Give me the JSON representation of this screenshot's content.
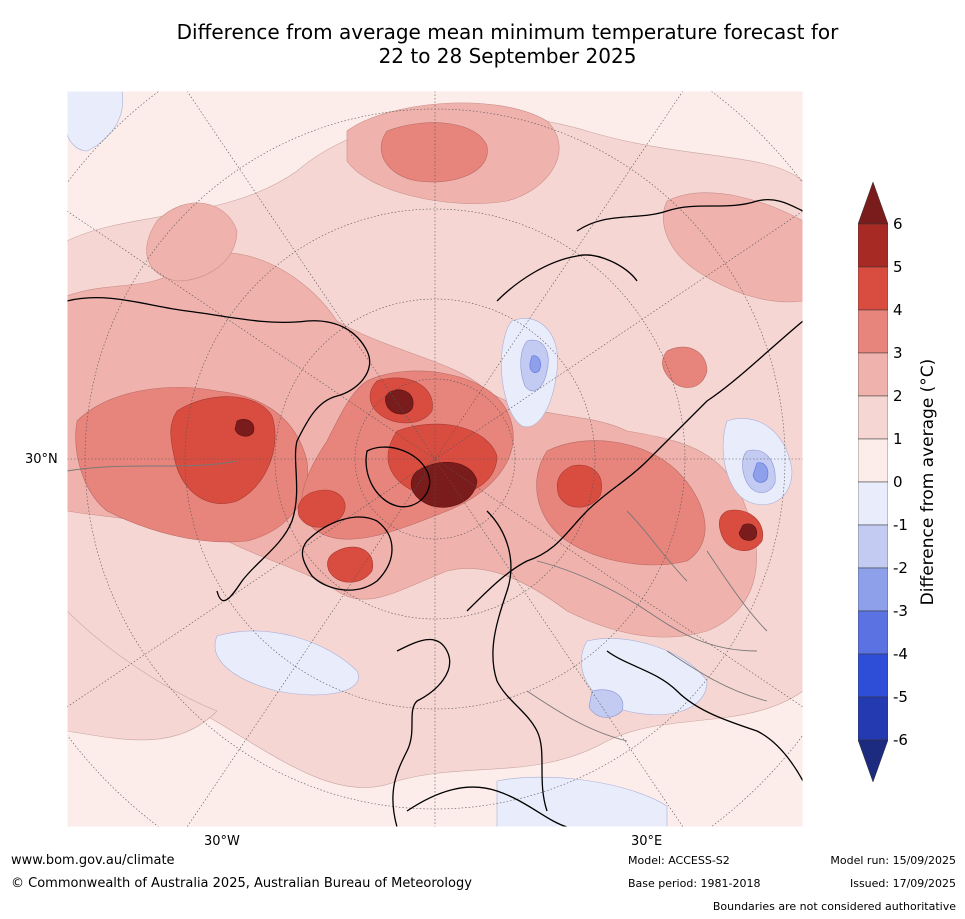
{
  "title": {
    "line1": "Difference from average mean minimum temperature forecast for",
    "line2": "22 to 28 September 2025"
  },
  "axes": {
    "lat_label": "30°N",
    "lon_labels": [
      "30°W",
      "30°E"
    ]
  },
  "colorbar": {
    "title": "Difference from average (°C)",
    "ticks": [
      "6",
      "5",
      "4",
      "3",
      "2",
      "1",
      "0",
      "-1",
      "-2",
      "-3",
      "-4",
      "-5",
      "-6"
    ],
    "colors": [
      "#7a1c1c",
      "#a82a25",
      "#d94d41",
      "#e7857d",
      "#efb2ad",
      "#f6d6d3",
      "#fcecea",
      "#e9ecfb",
      "#c3cbf2",
      "#8fa0ea",
      "#5b72e2",
      "#2f4ed8",
      "#243ab0",
      "#1c2b80"
    ]
  },
  "footer": {
    "website": "www.bom.gov.au/climate",
    "copyright": "© Commonwealth of Australia 2025, Australian Bureau of Meteorology",
    "model": "Model: ACCESS-S2",
    "base_period": "Base period: 1981-2018",
    "model_run": "Model run: 15/09/2025",
    "issued": "Issued: 17/09/2025",
    "boundaries": "Boundaries are not considered authoritative"
  }
}
